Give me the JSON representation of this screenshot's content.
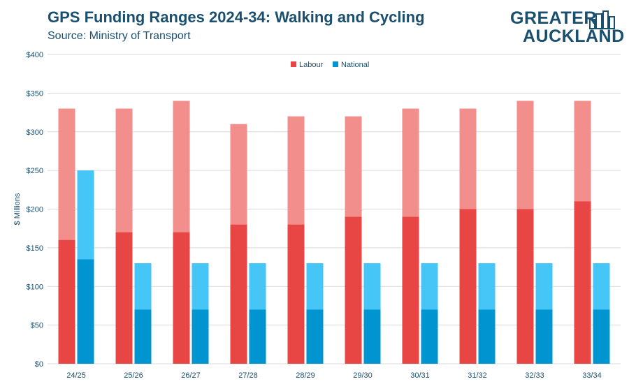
{
  "header": {
    "title": "GPS Funding Ranges 2024-34: Walking and Cycling",
    "subtitle": "Source: Ministry of Transport"
  },
  "logo": {
    "line1": "GREATER",
    "line2": "AUCKLAND",
    "color": "#1b4f6e"
  },
  "colors": {
    "labour_low": "#e84545",
    "labour_high": "#f28f8c",
    "national_low": "#0095d1",
    "national_high": "#45c6f6",
    "grid": "#d9d9d9",
    "text": "#1b4f6e"
  },
  "chart_data": {
    "type": "bar",
    "title": "GPS Funding Ranges 2024-34: Walking and Cycling",
    "subtitle": "Source: Ministry of Transport",
    "xlabel": "",
    "ylabel": "$ Millions",
    "ylim": [
      0,
      400
    ],
    "yticks": [
      0,
      50,
      100,
      150,
      200,
      250,
      300,
      350,
      400
    ],
    "ytick_labels": [
      "$0",
      "$50",
      "$100",
      "$150",
      "$200",
      "$250",
      "$300",
      "$350",
      "$400"
    ],
    "grid": true,
    "legend_position": "top-center",
    "categories": [
      "24/25",
      "25/26",
      "26/27",
      "27/28",
      "28/29",
      "29/30",
      "30/31",
      "31/32",
      "32/33",
      "33/34"
    ],
    "series": [
      {
        "name": "Labour",
        "low": [
          160,
          170,
          170,
          180,
          180,
          190,
          190,
          200,
          200,
          210
        ],
        "high": [
          330,
          330,
          340,
          310,
          320,
          320,
          330,
          330,
          340,
          340
        ]
      },
      {
        "name": "National",
        "low": [
          135,
          70,
          70,
          70,
          70,
          70,
          70,
          70,
          70,
          70
        ],
        "high": [
          250,
          130,
          130,
          130,
          130,
          130,
          130,
          130,
          130,
          130
        ]
      }
    ]
  }
}
